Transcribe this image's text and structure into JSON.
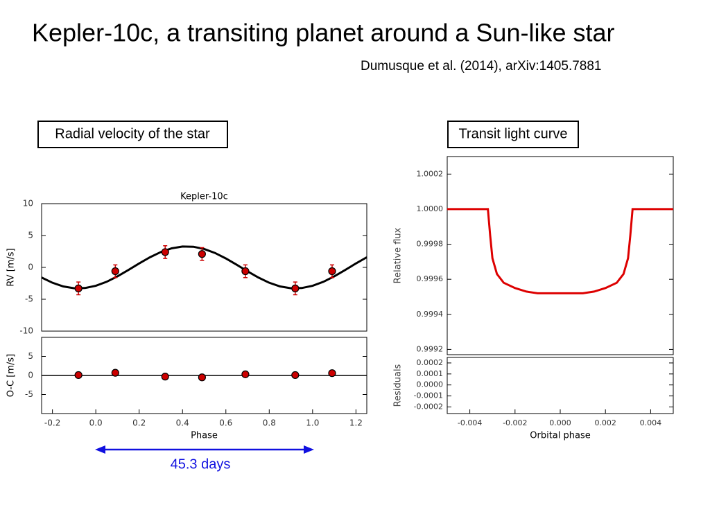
{
  "title": "Kepler-10c, a transiting planet around a Sun-like star",
  "subtitle": "Dumusque et al. (2014), arXiv:1405.7881",
  "labels": {
    "left": "Radial velocity of the star",
    "right": "Transit light curve",
    "period": "45.3 days"
  },
  "chart_data": [
    {
      "type": "line",
      "title": "Kepler-10c",
      "ylabel": "RV [m/s]",
      "xlim": [
        -0.25,
        1.25
      ],
      "ylim": [
        -10,
        10
      ],
      "yticks": [
        -10,
        -5,
        0,
        5,
        10
      ],
      "series": [
        {
          "color": "#000000",
          "style": "line",
          "x": [
            -0.25,
            -0.2,
            -0.15,
            -0.1,
            -0.05,
            0,
            0.05,
            0.1,
            0.15,
            0.2,
            0.25,
            0.3,
            0.35,
            0.4,
            0.45,
            0.5,
            0.55,
            0.6,
            0.65,
            0.7,
            0.75,
            0.8,
            0.85,
            0.9,
            0.95,
            1.0,
            1.05,
            1.1,
            1.15,
            1.2,
            1.25
          ],
          "values": [
            -1.59,
            -2.41,
            -2.99,
            -3.27,
            -3.24,
            -2.89,
            -2.26,
            -1.4,
            -0.41,
            0.62,
            1.59,
            2.41,
            2.99,
            3.27,
            3.24,
            2.89,
            2.26,
            1.4,
            0.41,
            -0.62,
            -1.59,
            -2.41,
            -2.99,
            -3.27,
            -3.24,
            -2.89,
            -2.26,
            -1.4,
            -0.41,
            0.62,
            1.59
          ]
        },
        {
          "color": "#cc0000",
          "style": "points",
          "x": [
            -0.08,
            0.09,
            0.32,
            0.49,
            0.69,
            0.92,
            1.09
          ],
          "values": [
            -3.3,
            -0.6,
            2.4,
            2.1,
            -0.6,
            -3.3,
            -0.6
          ],
          "errors": [
            1.0,
            1.0,
            1.0,
            1.0,
            1.0,
            1.0,
            1.0
          ]
        }
      ]
    },
    {
      "type": "line",
      "ylabel": "O-C [m/s]",
      "xlabel": "Phase",
      "xlim": [
        -0.25,
        1.25
      ],
      "ylim": [
        -10,
        10
      ],
      "yticks": [
        -5,
        0,
        5
      ],
      "xticks": [
        -0.2,
        {
          "value": 0,
          "label": "0.0"
        },
        0.2,
        0.4,
        0.6,
        0.8,
        {
          "value": 1,
          "label": "1.0"
        },
        1.2
      ],
      "series": [
        {
          "color": "#000000",
          "style": "line",
          "x": [
            -0.25,
            1.25
          ],
          "values": [
            0,
            0
          ]
        },
        {
          "color": "#cc0000",
          "style": "points",
          "x": [
            -0.08,
            0.09,
            0.32,
            0.49,
            0.69,
            0.92,
            1.09
          ],
          "values": [
            0.1,
            0.7,
            -0.3,
            -0.5,
            0.3,
            0.1,
            0.6
          ],
          "errors": [
            0.5,
            0.5,
            0.5,
            0.5,
            0.5,
            0.5,
            0.5
          ]
        }
      ]
    },
    {
      "type": "line",
      "ylabel": "Relative flux",
      "xlim": [
        -0.005,
        0.005
      ],
      "ylim": [
        0.99917,
        1.0003
      ],
      "yticks": [
        0.9992,
        0.9994,
        0.9996,
        0.9998,
        {
          "value": 1,
          "label": "1.0000"
        },
        1.0002
      ],
      "series": [
        {
          "color": "#dd0000",
          "style": "line",
          "x": [
            -0.005,
            -0.0032,
            -0.0031,
            -0.003,
            -0.0028,
            -0.0025,
            -0.002,
            -0.0015,
            -0.001,
            -0.0005,
            0,
            0.0005,
            0.001,
            0.0015,
            0.002,
            0.0025,
            0.0028,
            0.003,
            0.0031,
            0.0032,
            0.005
          ],
          "values": [
            1,
            1,
            0.99985,
            0.99972,
            0.99963,
            0.99958,
            0.99955,
            0.99953,
            0.99952,
            0.99952,
            0.99952,
            0.99952,
            0.99952,
            0.99953,
            0.99955,
            0.99958,
            0.99963,
            0.99972,
            0.99985,
            1,
            1
          ]
        }
      ]
    },
    {
      "type": "scatter",
      "ylabel": "Residuals",
      "xlabel": "Orbital phase",
      "xlim": [
        -0.005,
        0.005
      ],
      "ylim": [
        -0.00026,
        0.00025
      ],
      "yticks": [
        -0.0002,
        -0.0001,
        {
          "value": 0,
          "label": "0.0000"
        },
        0.0001,
        0.0002
      ],
      "xticks": [
        -0.004,
        -0.002,
        {
          "value": 0,
          "label": "0.000"
        },
        0.002,
        0.004
      ],
      "series": []
    }
  ]
}
